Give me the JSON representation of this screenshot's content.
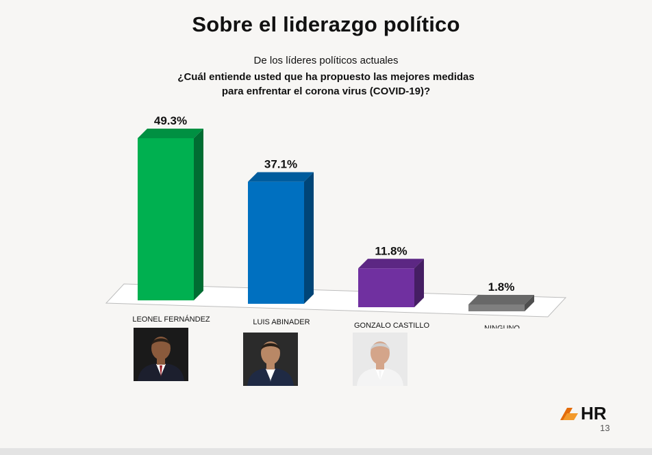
{
  "slide": {
    "title": "Sobre el liderazgo político",
    "subtitle": "De los líderes políticos actuales",
    "question_line1": "¿Cuál entiende usted que ha propuesto las mejores medidas",
    "question_line2": "para enfrentar el corona virus (COVID-19)?",
    "logo_text": "HR",
    "page_number": "13"
  },
  "chart_data": {
    "type": "bar",
    "style": "3d",
    "categories": [
      "LEONEL FERNÁNDEZ",
      "LUIS ABINADER",
      "GONZALO CASTILLO",
      "NINGUNO"
    ],
    "values": [
      49.3,
      37.1,
      11.8,
      1.8
    ],
    "data_labels": [
      "49.3%",
      "37.1%",
      "11.8%",
      "1.8%"
    ],
    "colors": [
      "#00b050",
      "#0070c0",
      "#7030a0",
      "#7f7f7f"
    ],
    "unit": "%",
    "ylim": [
      0,
      50
    ],
    "grid": false,
    "legend": "none"
  },
  "photos": [
    {
      "subject": "LEONEL FERNÁNDEZ",
      "icon": "portrait-icon",
      "background": "#1a1a1a",
      "suit": "#1c1f2e",
      "tie": "#9b1d24"
    },
    {
      "subject": "LUIS ABINADER",
      "icon": "portrait-icon",
      "background": "#2b2b2b",
      "suit": "#1f2a44",
      "tie": "#ffffff"
    },
    {
      "subject": "GONZALO CASTILLO",
      "icon": "portrait-icon",
      "background": "#e9e9e9",
      "suit": "#f4f4f4",
      "tie": "#f4f4f4"
    }
  ]
}
